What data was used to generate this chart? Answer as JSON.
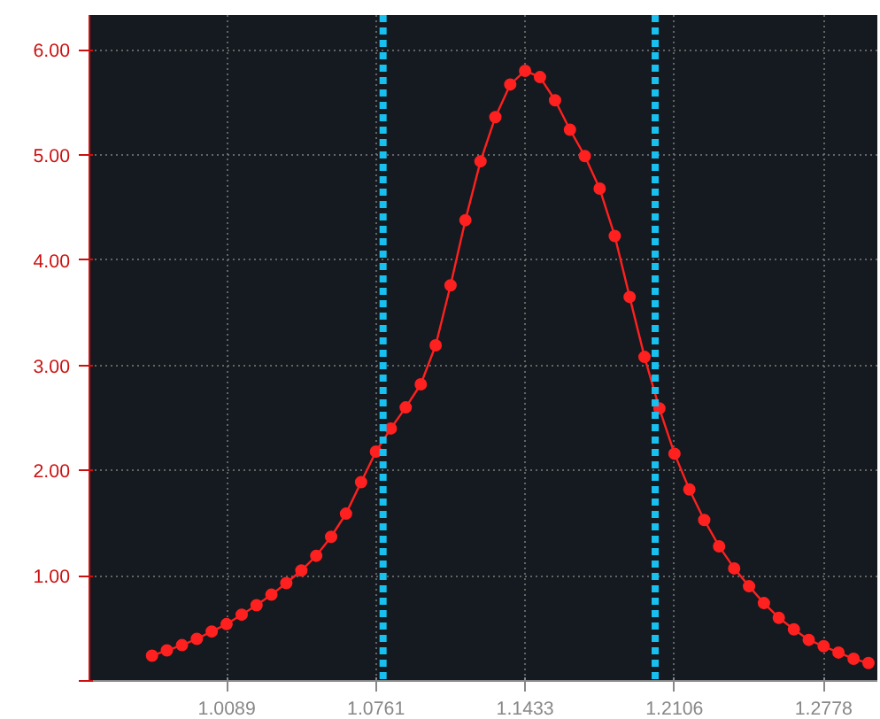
{
  "chart_data": {
    "type": "line",
    "x": [
      0.9752,
      0.9819,
      0.9887,
      0.9954,
      1.0021,
      1.0088,
      1.0156,
      1.0223,
      1.029,
      1.0357,
      1.0425,
      1.0492,
      1.0559,
      1.0626,
      1.0694,
      1.0761,
      1.0828,
      1.0895,
      1.0963,
      1.103,
      1.1097,
      1.1164,
      1.1232,
      1.1299,
      1.1366,
      1.1433,
      1.15,
      1.1568,
      1.1635,
      1.1702,
      1.1769,
      1.1837,
      1.1904,
      1.1971,
      1.2038,
      1.2106,
      1.2173,
      1.224,
      1.2307,
      1.2375,
      1.2442,
      1.2509,
      1.2576,
      1.2644,
      1.2711,
      1.2778,
      1.2845,
      1.2913,
      1.298
    ],
    "series": [
      {
        "color": "#ff2020",
        "values": [
          0.24,
          0.29,
          0.34,
          0.4,
          0.47,
          0.54,
          0.63,
          0.72,
          0.82,
          0.93,
          1.05,
          1.19,
          1.37,
          1.59,
          1.89,
          2.18,
          2.4,
          2.6,
          2.82,
          3.19,
          3.76,
          4.38,
          4.94,
          5.36,
          5.67,
          5.8,
          5.74,
          5.52,
          5.24,
          4.99,
          4.68,
          4.23,
          3.65,
          3.08,
          2.59,
          2.16,
          1.82,
          1.53,
          1.28,
          1.07,
          0.9,
          0.74,
          0.6,
          0.49,
          0.39,
          0.33,
          0.27,
          0.21,
          0.17
        ]
      }
    ],
    "xlim": [
      0.947,
      1.302
    ],
    "xticks": [
      1.0089,
      1.0761,
      1.1433,
      1.2106,
      1.2778
    ],
    "ylim": [
      0,
      6.33
    ],
    "yticks": [
      {
        "value": 0,
        "label": null
      },
      {
        "value": 1,
        "label": "1.00"
      },
      {
        "value": 2,
        "label": "2.00"
      },
      {
        "value": 3,
        "label": "3.00"
      },
      {
        "value": 4,
        "label": "4.00"
      },
      {
        "value": 5,
        "label": "5.00"
      },
      {
        "value": 6,
        "label": "6.00"
      }
    ],
    "ref_lines": [
      {
        "axis": "x",
        "value": 1.0793,
        "color": "#18c0f0",
        "line_style": "dashed"
      },
      {
        "axis": "x",
        "value": 1.2019,
        "color": "#18c0f0",
        "line_style": "dashed"
      }
    ],
    "grid": true,
    "marker": "circle",
    "line_style": "solid"
  }
}
